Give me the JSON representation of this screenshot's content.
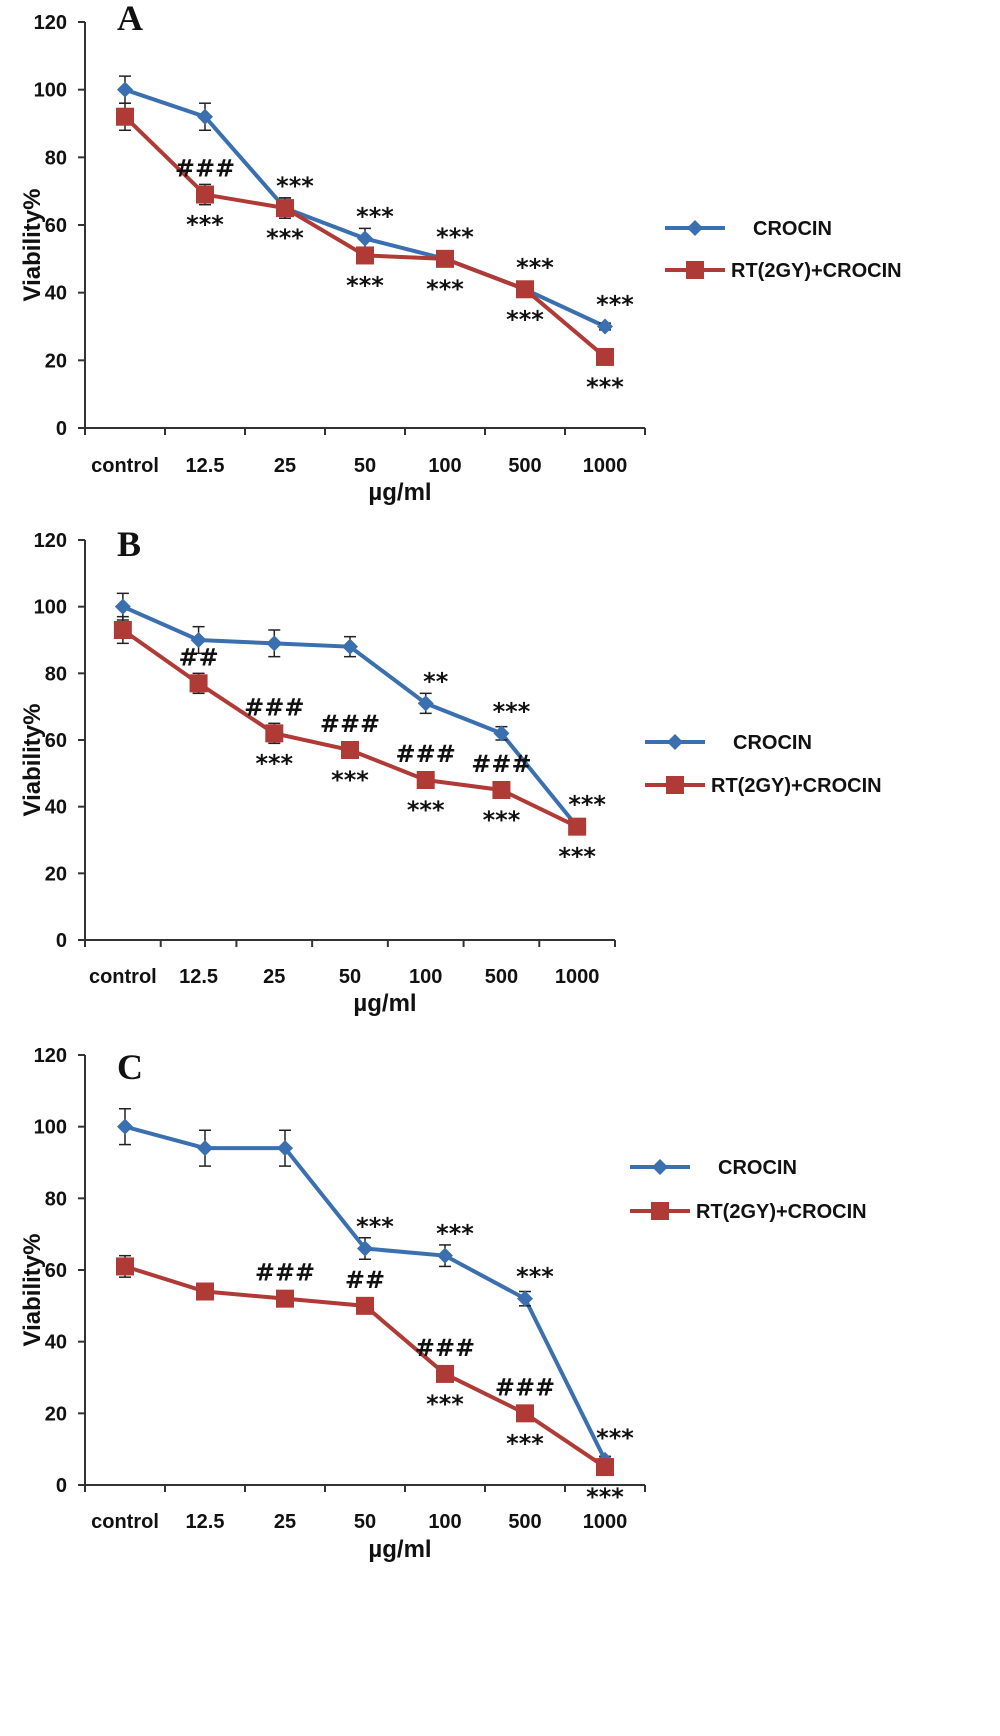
{
  "chart_data": [
    {
      "type": "line",
      "panel": "A",
      "categories": [
        "control",
        "12.5",
        "25",
        "50",
        "100",
        "500",
        "1000"
      ],
      "xlabel": "µg/ml",
      "ylabel": "Viability%",
      "ylim": [
        0,
        120
      ],
      "yticks": [
        "0",
        "20",
        "40",
        "60",
        "80",
        "100",
        "120"
      ],
      "legend_position": "right",
      "grid": false,
      "series": [
        {
          "name": "CROCIN",
          "color": "#3a6fb0",
          "marker": "diamond",
          "values": [
            100,
            92,
            65,
            56,
            50,
            41,
            30
          ],
          "errors": [
            4,
            4,
            3,
            3,
            2,
            2,
            1
          ],
          "annotations": [
            "",
            "",
            "***",
            "***",
            "***",
            "***",
            "***"
          ]
        },
        {
          "name": "RT(2GY)+CROCIN",
          "color": "#b03a35",
          "marker": "square",
          "values": [
            92,
            69,
            65,
            51,
            50,
            41,
            21
          ],
          "errors": [
            4,
            3,
            3,
            2,
            2,
            2,
            1
          ],
          "annotations": [
            "",
            "###|***",
            "***",
            "***",
            "***",
            "***",
            "***"
          ]
        }
      ]
    },
    {
      "type": "line",
      "panel": "B",
      "categories": [
        "control",
        "12.5",
        "25",
        "50",
        "100",
        "500",
        "1000"
      ],
      "xlabel": "µg/ml",
      "ylabel": "Viability%",
      "ylim": [
        0,
        120
      ],
      "yticks": [
        "0",
        "20",
        "40",
        "60",
        "80",
        "100",
        "120"
      ],
      "legend_position": "right",
      "grid": false,
      "series": [
        {
          "name": "CROCIN",
          "color": "#3a6fb0",
          "marker": "diamond",
          "values": [
            100,
            90,
            89,
            88,
            71,
            62,
            34
          ],
          "errors": [
            4,
            4,
            4,
            3,
            3,
            2,
            1
          ],
          "annotations": [
            "",
            "",
            "",
            "",
            "**",
            "***",
            "***"
          ]
        },
        {
          "name": "RT(2GY)+CROCIN",
          "color": "#b03a35",
          "marker": "square",
          "values": [
            93,
            77,
            62,
            57,
            48,
            45,
            34
          ],
          "errors": [
            4,
            3,
            3,
            2,
            2,
            2,
            1
          ],
          "annotations": [
            "",
            "##",
            "###|***",
            "###|***",
            "###|***",
            "###|***",
            "***"
          ]
        }
      ]
    },
    {
      "type": "line",
      "panel": "C",
      "categories": [
        "control",
        "12.5",
        "25",
        "50",
        "100",
        "500",
        "1000"
      ],
      "xlabel": "µg/ml",
      "ylabel": "Viability%",
      "ylim": [
        0,
        120
      ],
      "yticks": [
        "0",
        "20",
        "40",
        "60",
        "80",
        "100",
        "120"
      ],
      "legend_position": "right",
      "grid": false,
      "series": [
        {
          "name": "CROCIN",
          "color": "#3a6fb0",
          "marker": "diamond",
          "values": [
            100,
            94,
            94,
            66,
            64,
            52,
            7
          ],
          "errors": [
            5,
            5,
            5,
            3,
            3,
            2,
            1
          ],
          "annotations": [
            "",
            "",
            "",
            "***",
            "***",
            "***",
            "***"
          ]
        },
        {
          "name": "RT(2GY)+CROCIN",
          "color": "#b03a35",
          "marker": "square",
          "values": [
            61,
            54,
            52,
            50,
            31,
            20,
            5
          ],
          "errors": [
            3,
            2,
            2,
            2,
            2,
            1,
            1
          ],
          "annotations": [
            "",
            "",
            "###",
            "##",
            "###|***",
            "###|***",
            "***"
          ]
        }
      ]
    }
  ]
}
